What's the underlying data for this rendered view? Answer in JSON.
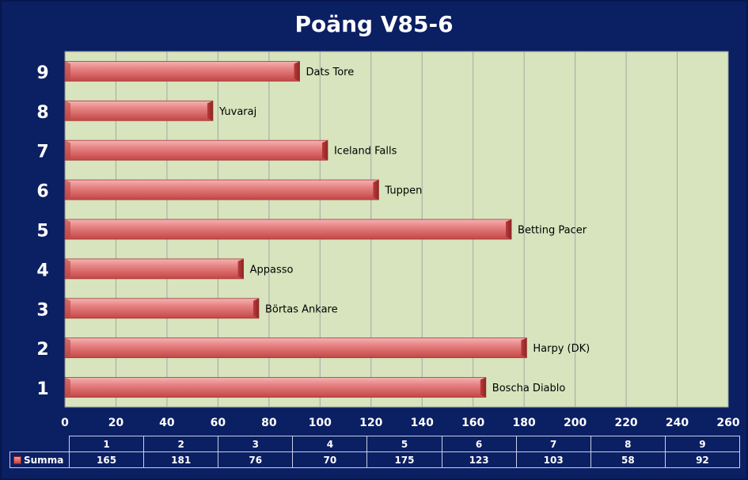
{
  "chart_data": {
    "type": "bar",
    "orientation": "horizontal",
    "title": "Poäng  V85-6",
    "categories": [
      "1",
      "2",
      "3",
      "4",
      "5",
      "6",
      "7",
      "8",
      "9"
    ],
    "bar_labels": [
      "Boscha Diablo",
      "Harpy (DK)",
      "Börtas Ankare",
      "Appasso",
      "Betting Pacer",
      "Tuppen",
      "Iceland Falls",
      "Yuvaraj",
      "Dats Tore"
    ],
    "series": [
      {
        "name": "Summa",
        "values": [
          165,
          181,
          76,
          70,
          175,
          123,
          103,
          58,
          92
        ]
      }
    ],
    "xlim": [
      0,
      260
    ],
    "x_ticks": [
      0,
      20,
      40,
      60,
      80,
      100,
      120,
      140,
      160,
      180,
      200,
      220,
      240,
      260
    ],
    "grid": "vertical",
    "data_table": true,
    "colors": {
      "background": "#0b1f63",
      "plot_area": "#d7e4bd",
      "gridline": "#a6a6a6",
      "bar": "#e07070",
      "text": "#ffffff"
    }
  }
}
